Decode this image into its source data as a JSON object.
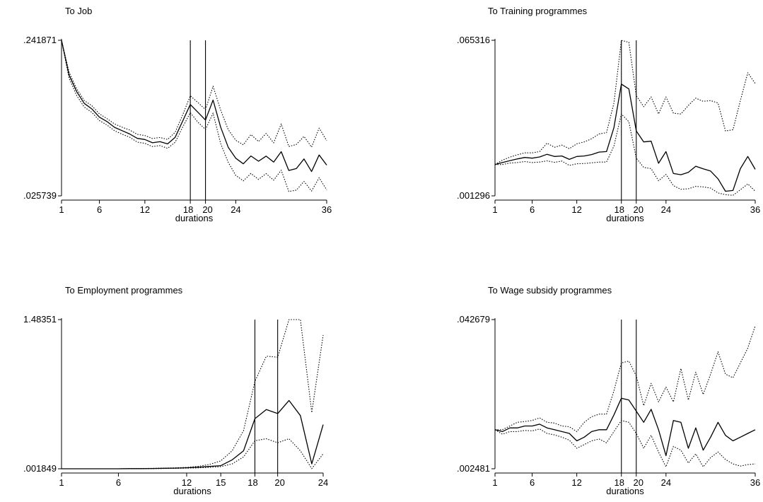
{
  "chart_data": [
    {
      "type": "line",
      "title": "To Job",
      "xlabel": "durations",
      "ylabel": "",
      "xlim": [
        1,
        36
      ],
      "ylim": [
        0.025739,
        0.241871
      ],
      "x_ticks": [
        1,
        6,
        12,
        18,
        20,
        24,
        36
      ],
      "y_ticks": [
        ".025739",
        ".241871"
      ],
      "vlines": [
        18,
        20
      ],
      "x": [
        1,
        2,
        3,
        4,
        5,
        6,
        7,
        8,
        9,
        10,
        11,
        12,
        13,
        14,
        15,
        16,
        17,
        18,
        19,
        20,
        21,
        22,
        23,
        24,
        25,
        26,
        27,
        28,
        29,
        30,
        31,
        32,
        33,
        34,
        35,
        36
      ],
      "series": [
        {
          "style": "solid",
          "values": [
            0.2419,
            0.1935,
            0.1706,
            0.1542,
            0.1465,
            0.1351,
            0.129,
            0.1209,
            0.1163,
            0.1117,
            0.1056,
            0.104,
            0.0995,
            0.101,
            0.0979,
            0.1071,
            0.1298,
            0.1527,
            0.1419,
            0.1311,
            0.1589,
            0.1213,
            0.0933,
            0.078,
            0.0702,
            0.0811,
            0.0739,
            0.081,
            0.0727,
            0.0871,
            0.061,
            0.0637,
            0.077,
            0.0595,
            0.0825,
            0.0685
          ]
        },
        {
          "style": "dotted",
          "values": [
            0.2419,
            0.1976,
            0.1746,
            0.1582,
            0.151,
            0.1396,
            0.133,
            0.1257,
            0.1211,
            0.1172,
            0.1112,
            0.1095,
            0.1054,
            0.1069,
            0.104,
            0.1141,
            0.1383,
            0.1648,
            0.1554,
            0.1456,
            0.1781,
            0.145,
            0.1179,
            0.103,
            0.0967,
            0.1109,
            0.1012,
            0.1125,
            0.0994,
            0.1257,
            0.0943,
            0.0972,
            0.1084,
            0.0934,
            0.1199,
            0.1024
          ]
        },
        {
          "style": "dotted",
          "values": [
            0.2419,
            0.189,
            0.1652,
            0.1491,
            0.1418,
            0.1304,
            0.1242,
            0.1162,
            0.1114,
            0.1073,
            0.1004,
            0.0987,
            0.0942,
            0.0956,
            0.0918,
            0.1002,
            0.1214,
            0.1414,
            0.128,
            0.118,
            0.1407,
            0.0985,
            0.0724,
            0.0541,
            0.0466,
            0.0569,
            0.0485,
            0.0566,
            0.0475,
            0.0614,
            0.0318,
            0.0337,
            0.0458,
            0.0324,
            0.051,
            0.034
          ]
        }
      ]
    },
    {
      "type": "line",
      "title": "To Training programmes",
      "xlabel": "durations",
      "ylabel": "",
      "xlim": [
        1,
        36
      ],
      "ylim": [
        0.001296,
        0.065316
      ],
      "x_ticks": [
        1,
        6,
        12,
        18,
        20,
        24,
        36
      ],
      "y_ticks": [
        ".001296",
        ".065316"
      ],
      "vlines": [
        18,
        20
      ],
      "x": [
        1,
        2,
        3,
        4,
        5,
        6,
        7,
        8,
        9,
        10,
        11,
        12,
        13,
        14,
        15,
        16,
        17,
        18,
        19,
        20,
        21,
        22,
        23,
        24,
        25,
        26,
        27,
        28,
        29,
        30,
        31,
        32,
        33,
        34,
        35,
        36
      ],
      "series": [
        {
          "style": "solid",
          "values": [
            0.0142,
            0.015,
            0.0158,
            0.0165,
            0.0171,
            0.0168,
            0.0173,
            0.0184,
            0.0175,
            0.0177,
            0.0163,
            0.0175,
            0.0177,
            0.0183,
            0.0193,
            0.0195,
            0.0294,
            0.0473,
            0.0453,
            0.028,
            0.0235,
            0.0238,
            0.0147,
            0.0195,
            0.0105,
            0.01,
            0.011,
            0.0135,
            0.0124,
            0.0115,
            0.0083,
            0.0032,
            0.0035,
            0.0125,
            0.0175,
            0.0122
          ]
        },
        {
          "style": "dotted",
          "values": [
            0.0142,
            0.016,
            0.0172,
            0.0182,
            0.019,
            0.019,
            0.0195,
            0.023,
            0.0213,
            0.0222,
            0.0207,
            0.0227,
            0.0235,
            0.0248,
            0.0268,
            0.0273,
            0.0395,
            0.0653,
            0.0645,
            0.0425,
            0.038,
            0.042,
            0.035,
            0.042,
            0.0353,
            0.035,
            0.0385,
            0.0415,
            0.0402,
            0.0405,
            0.0395,
            0.028,
            0.0285,
            0.0405,
            0.052,
            0.0475
          ]
        },
        {
          "style": "dotted",
          "values": [
            0.0142,
            0.0142,
            0.0148,
            0.015,
            0.0154,
            0.015,
            0.0152,
            0.0157,
            0.0151,
            0.0156,
            0.0138,
            0.0145,
            0.0146,
            0.0149,
            0.0152,
            0.0152,
            0.0218,
            0.035,
            0.0318,
            0.0168,
            0.013,
            0.0125,
            0.0075,
            0.0101,
            0.0055,
            0.004,
            0.0042,
            0.0052,
            0.005,
            0.0045,
            0.0025,
            0.0018,
            0.0015,
            0.0038,
            0.0062,
            0.0032
          ]
        }
      ]
    },
    {
      "type": "line",
      "title": "To Employment programmes",
      "xlabel": "durations",
      "ylabel": "",
      "xlim": [
        1,
        24
      ],
      "ylim": [
        0.001849,
        1.48351
      ],
      "x_ticks": [
        1,
        6,
        12,
        15,
        18,
        20,
        24
      ],
      "y_ticks": [
        ".001849",
        "1.48351"
      ],
      "vlines": [
        18,
        20
      ],
      "x": [
        1,
        2,
        3,
        4,
        5,
        6,
        7,
        8,
        9,
        10,
        11,
        12,
        13,
        14,
        15,
        16,
        17,
        18,
        19,
        20,
        21,
        22,
        23,
        24
      ],
      "series": [
        {
          "style": "solid",
          "values": [
            0.0018,
            0.0018,
            0.0018,
            0.0018,
            0.0018,
            0.002,
            0.003,
            0.0035,
            0.005,
            0.0065,
            0.0085,
            0.012,
            0.017,
            0.025,
            0.033,
            0.09,
            0.18,
            0.5,
            0.59,
            0.55,
            0.68,
            0.53,
            0.05,
            0.44
          ]
        },
        {
          "style": "dotted",
          "values": [
            0.0018,
            0.0018,
            0.0018,
            0.0018,
            0.0018,
            0.0022,
            0.0035,
            0.0045,
            0.006,
            0.008,
            0.011,
            0.016,
            0.026,
            0.045,
            0.08,
            0.18,
            0.38,
            0.87,
            1.12,
            1.11,
            1.4835,
            1.4835,
            0.56,
            1.33
          ]
        },
        {
          "style": "dotted",
          "values": [
            0.0018,
            0.0018,
            0.0018,
            0.0018,
            0.0018,
            0.0018,
            0.0025,
            0.0028,
            0.0035,
            0.0045,
            0.006,
            0.008,
            0.011,
            0.016,
            0.023,
            0.05,
            0.12,
            0.28,
            0.3,
            0.26,
            0.3,
            0.18,
            0.003,
            0.15
          ]
        }
      ]
    },
    {
      "type": "line",
      "title": "To Wage subsidy programmes",
      "xlabel": "durations",
      "ylabel": "",
      "xlim": [
        1,
        36
      ],
      "ylim": [
        0.002481,
        0.042679
      ],
      "x_ticks": [
        1,
        6,
        12,
        18,
        20,
        24,
        36
      ],
      "y_ticks": [
        ".002481",
        ".042679"
      ],
      "vlines": [
        18,
        20
      ],
      "x": [
        1,
        2,
        3,
        4,
        5,
        6,
        7,
        8,
        9,
        10,
        11,
        12,
        13,
        14,
        15,
        16,
        17,
        18,
        19,
        20,
        21,
        22,
        23,
        24,
        25,
        26,
        27,
        28,
        29,
        30,
        31,
        32,
        33,
        34,
        35,
        36
      ],
      "series": [
        {
          "style": "solid",
          "values": [
            0.013,
            0.0125,
            0.0135,
            0.0135,
            0.014,
            0.014,
            0.0145,
            0.0135,
            0.013,
            0.0125,
            0.012,
            0.01,
            0.011,
            0.0125,
            0.013,
            0.013,
            0.017,
            0.0215,
            0.021,
            0.018,
            0.015,
            0.0185,
            0.013,
            0.006,
            0.0155,
            0.015,
            0.008,
            0.0135,
            0.0075,
            0.011,
            0.015,
            0.0115,
            0.01,
            0.011,
            0.012,
            0.013
          ]
        },
        {
          "style": "dotted",
          "values": [
            0.013,
            0.013,
            0.014,
            0.015,
            0.0152,
            0.0155,
            0.0162,
            0.015,
            0.0148,
            0.014,
            0.0138,
            0.0125,
            0.015,
            0.0165,
            0.0172,
            0.0172,
            0.0235,
            0.031,
            0.0315,
            0.0275,
            0.0195,
            0.0255,
            0.0205,
            0.0245,
            0.0205,
            0.0295,
            0.021,
            0.0285,
            0.0225,
            0.028,
            0.034,
            0.028,
            0.027,
            0.031,
            0.035,
            0.041
          ]
        },
        {
          "style": "dotted",
          "values": [
            0.013,
            0.0118,
            0.0125,
            0.0125,
            0.0128,
            0.0127,
            0.0132,
            0.012,
            0.0116,
            0.011,
            0.0102,
            0.008,
            0.009,
            0.01,
            0.0105,
            0.0095,
            0.0125,
            0.0155,
            0.015,
            0.012,
            0.008,
            0.0115,
            0.007,
            0.003,
            0.0085,
            0.0075,
            0.004,
            0.0065,
            0.003,
            0.0055,
            0.007,
            0.005,
            0.0038,
            0.0032,
            0.0036,
            0.0038
          ]
        }
      ]
    }
  ]
}
